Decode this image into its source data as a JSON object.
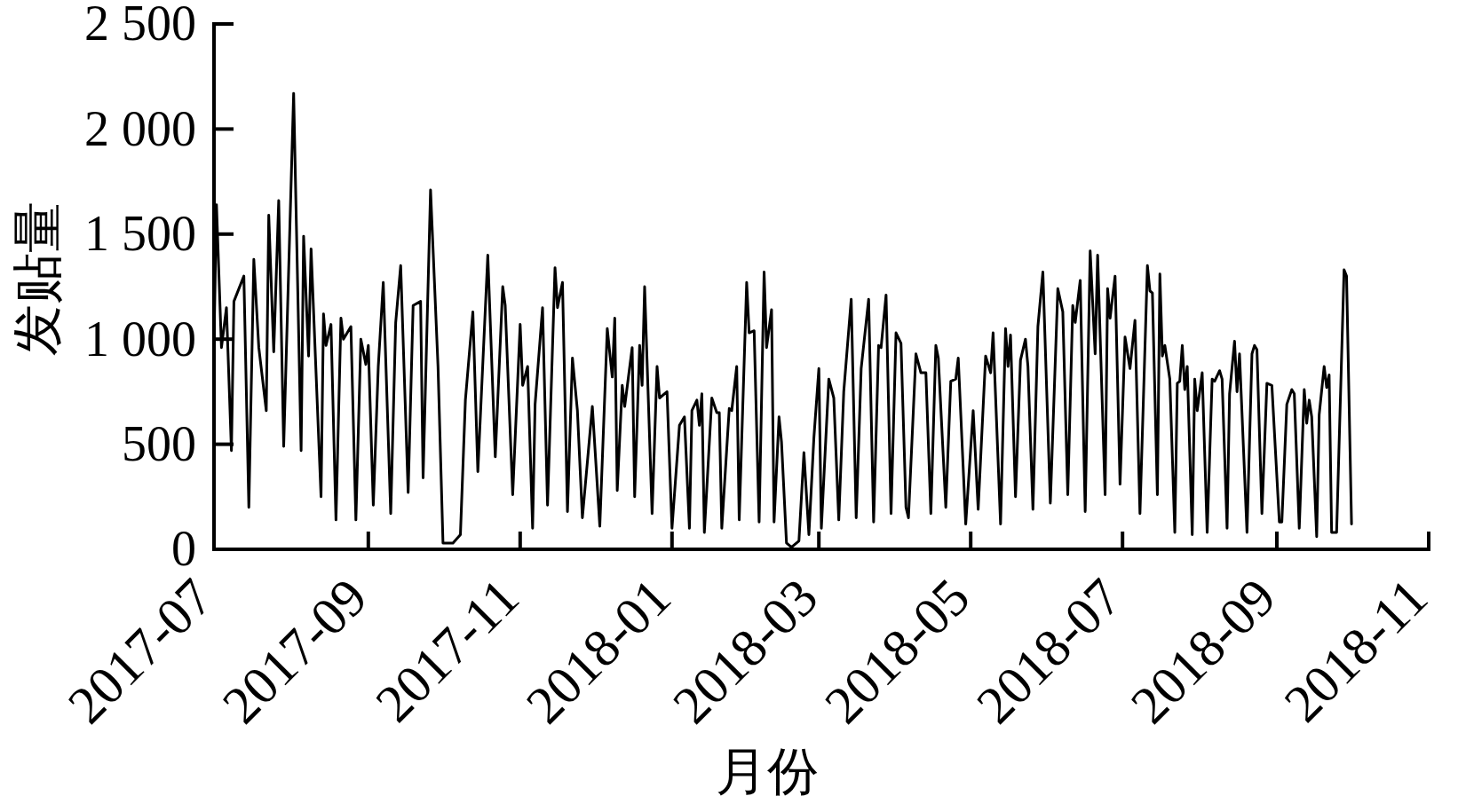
{
  "chart_data": {
    "type": "line",
    "xlabel": "月份",
    "ylabel": "发贴量",
    "x": [
      "2017-07-01",
      "2017-07-02",
      "2017-07-04",
      "2017-07-06",
      "2017-07-08",
      "2017-07-09",
      "2017-07-13",
      "2017-07-15",
      "2017-07-17",
      "2017-07-19",
      "2017-07-22",
      "2017-07-23",
      "2017-07-25",
      "2017-07-27",
      "2017-07-29",
      "2017-08-02",
      "2017-08-05",
      "2017-08-06",
      "2017-08-08",
      "2017-08-09",
      "2017-08-13",
      "2017-08-14",
      "2017-08-15",
      "2017-08-17",
      "2017-08-19",
      "2017-08-21",
      "2017-08-22",
      "2017-08-23",
      "2017-08-25",
      "2017-08-27",
      "2017-08-29",
      "2017-08-31",
      "2017-09-01",
      "2017-09-03",
      "2017-09-05",
      "2017-09-07",
      "2017-09-10",
      "2017-09-12",
      "2017-09-14",
      "2017-09-17",
      "2017-09-19",
      "2017-09-22",
      "2017-09-23",
      "2017-09-26",
      "2017-09-29",
      "2017-10-01",
      "2017-10-05",
      "2017-10-08",
      "2017-10-10",
      "2017-10-13",
      "2017-10-15",
      "2017-10-19",
      "2017-10-22",
      "2017-10-25",
      "2017-10-26",
      "2017-10-29",
      "2017-11-01",
      "2017-11-02",
      "2017-11-04",
      "2017-11-06",
      "2017-11-07",
      "2017-11-10",
      "2017-11-12",
      "2017-11-15",
      "2017-11-16",
      "2017-11-18",
      "2017-11-20",
      "2017-11-22",
      "2017-11-24",
      "2017-11-26",
      "2017-11-30",
      "2017-12-03",
      "2017-12-06",
      "2017-12-08",
      "2017-12-09",
      "2017-12-10",
      "2017-12-12",
      "2017-12-13",
      "2017-12-16",
      "2017-12-17",
      "2017-12-19",
      "2017-12-20",
      "2017-12-21",
      "2017-12-24",
      "2017-12-26",
      "2017-12-27",
      "2017-12-30",
      "2018-01-01",
      "2018-01-04",
      "2018-01-06",
      "2018-01-08",
      "2018-01-09",
      "2018-01-11",
      "2018-01-12",
      "2018-01-13",
      "2018-01-14",
      "2018-01-17",
      "2018-01-19",
      "2018-01-20",
      "2018-01-21",
      "2018-01-24",
      "2018-01-25",
      "2018-01-27",
      "2018-01-28",
      "2018-01-31",
      "2018-02-01",
      "2018-02-03",
      "2018-02-05",
      "2018-02-07",
      "2018-02-08",
      "2018-02-10",
      "2018-02-11",
      "2018-02-13",
      "2018-02-14",
      "2018-02-16",
      "2018-02-18",
      "2018-02-21",
      "2018-02-23",
      "2018-02-25",
      "2018-02-27",
      "2018-03-01",
      "2018-03-02",
      "2018-03-05",
      "2018-03-07",
      "2018-03-09",
      "2018-03-11",
      "2018-03-14",
      "2018-03-16",
      "2018-03-18",
      "2018-03-21",
      "2018-03-23",
      "2018-03-25",
      "2018-03-26",
      "2018-03-28",
      "2018-03-30",
      "2018-04-01",
      "2018-04-03",
      "2018-04-05",
      "2018-04-06",
      "2018-04-09",
      "2018-04-11",
      "2018-04-13",
      "2018-04-15",
      "2018-04-17",
      "2018-04-18",
      "2018-04-21",
      "2018-04-23",
      "2018-04-25",
      "2018-04-26",
      "2018-04-29",
      "2018-05-02",
      "2018-05-04",
      "2018-05-07",
      "2018-05-09",
      "2018-05-10",
      "2018-05-13",
      "2018-05-15",
      "2018-05-16",
      "2018-05-17",
      "2018-05-19",
      "2018-05-21",
      "2018-05-23",
      "2018-05-24",
      "2018-05-26",
      "2018-05-28",
      "2018-05-30",
      "2018-06-02",
      "2018-06-05",
      "2018-06-07",
      "2018-06-09",
      "2018-06-11",
      "2018-06-12",
      "2018-06-14",
      "2018-06-16",
      "2018-06-18",
      "2018-06-20",
      "2018-06-21",
      "2018-06-24",
      "2018-06-25",
      "2018-06-26",
      "2018-06-28",
      "2018-06-30",
      "2018-07-02",
      "2018-07-04",
      "2018-07-06",
      "2018-07-08",
      "2018-07-11",
      "2018-07-12",
      "2018-07-13",
      "2018-07-15",
      "2018-07-16",
      "2018-07-17",
      "2018-07-18",
      "2018-07-20",
      "2018-07-22",
      "2018-07-23",
      "2018-07-24",
      "2018-07-25",
      "2018-07-26",
      "2018-07-27",
      "2018-07-29",
      "2018-07-30",
      "2018-07-31",
      "2018-08-02",
      "2018-08-04",
      "2018-08-06",
      "2018-08-07",
      "2018-08-09",
      "2018-08-10",
      "2018-08-12",
      "2018-08-13",
      "2018-08-15",
      "2018-08-16",
      "2018-08-17",
      "2018-08-20",
      "2018-08-22",
      "2018-08-23",
      "2018-08-24",
      "2018-08-26",
      "2018-08-28",
      "2018-08-30",
      "2018-09-02",
      "2018-09-03",
      "2018-09-05",
      "2018-09-07",
      "2018-09-08",
      "2018-09-10",
      "2018-09-12",
      "2018-09-13",
      "2018-09-14",
      "2018-09-15",
      "2018-09-17",
      "2018-09-18",
      "2018-09-20",
      "2018-09-21",
      "2018-09-22",
      "2018-09-23",
      "2018-09-25",
      "2018-09-28",
      "2018-09-29",
      "2018-10-01"
    ],
    "series": [
      {
        "color": "#000000",
        "values": [
          980,
          1640,
          960,
          1150,
          470,
          1180,
          1300,
          200,
          1380,
          960,
          660,
          1590,
          940,
          1660,
          490,
          2170,
          470,
          1490,
          920,
          1430,
          250,
          1120,
          970,
          1070,
          140,
          1100,
          1000,
          1020,
          1060,
          140,
          1000,
          880,
          970,
          210,
          870,
          1270,
          170,
          1080,
          1350,
          270,
          1160,
          1180,
          340,
          1710,
          870,
          30,
          30,
          70,
          710,
          1130,
          370,
          1400,
          440,
          1250,
          1160,
          260,
          1070,
          780,
          870,
          100,
          690,
          1150,
          210,
          1340,
          1150,
          1270,
          180,
          910,
          660,
          150,
          680,
          110,
          1050,
          820,
          1100,
          280,
          780,
          680,
          960,
          250,
          970,
          780,
          1250,
          170,
          870,
          720,
          750,
          100,
          590,
          630,
          100,
          660,
          710,
          590,
          740,
          80,
          720,
          650,
          650,
          100,
          670,
          660,
          870,
          140,
          1270,
          1030,
          1040,
          130,
          1320,
          960,
          1140,
          130,
          630,
          510,
          30,
          10,
          40,
          460,
          70,
          530,
          860,
          100,
          810,
          720,
          140,
          750,
          1190,
          150,
          860,
          1190,
          130,
          970,
          960,
          1210,
          170,
          1030,
          980,
          200,
          150,
          930,
          840,
          840,
          170,
          970,
          910,
          200,
          800,
          810,
          910,
          120,
          660,
          190,
          920,
          840,
          1030,
          120,
          1050,
          870,
          1020,
          250,
          900,
          1000,
          870,
          190,
          1060,
          1320,
          220,
          1240,
          1130,
          260,
          1160,
          1080,
          1280,
          180,
          1420,
          930,
          1400,
          260,
          1240,
          1100,
          1300,
          310,
          1010,
          860,
          1090,
          170,
          1350,
          1230,
          1220,
          260,
          1310,
          920,
          970,
          810,
          80,
          790,
          800,
          970,
          760,
          870,
          70,
          810,
          660,
          840,
          80,
          810,
          800,
          850,
          810,
          100,
          740,
          990,
          750,
          930,
          80,
          930,
          970,
          950,
          170,
          790,
          780,
          130,
          130,
          690,
          760,
          740,
          100,
          760,
          600,
          710,
          630,
          60,
          640,
          870,
          770,
          830,
          80,
          80,
          1330,
          1300,
          120
        ]
      }
    ],
    "xlim": [
      "2017-07",
      "2018-11"
    ],
    "xticks": [
      "2017-07",
      "2017-09",
      "2017-11",
      "2018-01",
      "2018-03",
      "2018-05",
      "2018-07",
      "2018-09",
      "2018-11"
    ],
    "ylim": [
      0,
      2500
    ],
    "yticks": [
      0,
      500,
      {
        "value": 1000,
        "label": "1 000"
      },
      {
        "value": 1500,
        "label": "1 500"
      },
      {
        "value": 2000,
        "label": "2 000"
      },
      {
        "value": 2500,
        "label": "2 500"
      }
    ],
    "line_style": "solid"
  }
}
